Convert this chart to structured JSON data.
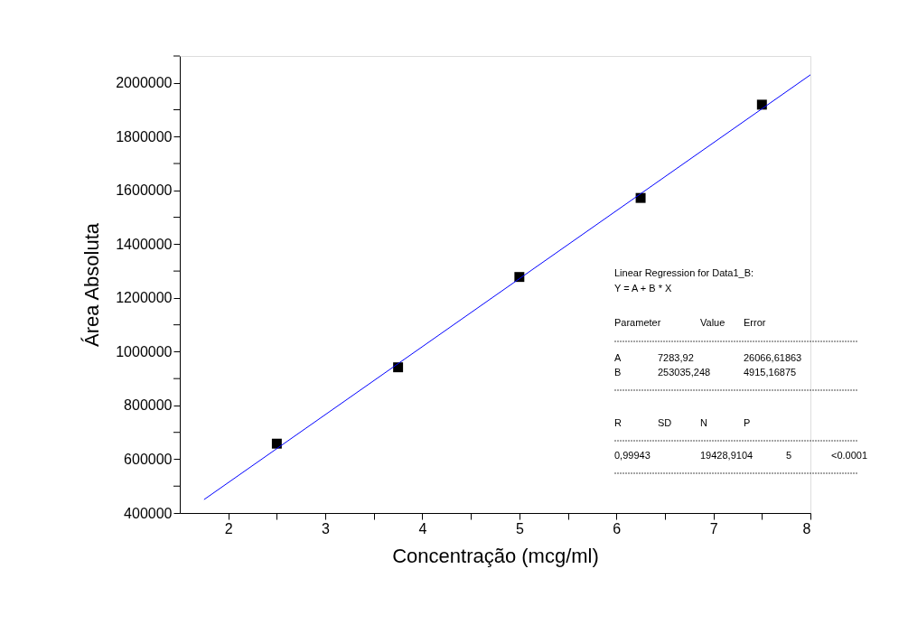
{
  "chart_data": {
    "type": "scatter",
    "xlabel": "Concentração (mcg/ml)",
    "ylabel": "Área Absoluta",
    "xlim": [
      1.5,
      8
    ],
    "ylim": [
      400000,
      2100000
    ],
    "xticks": [
      2,
      {
        "value": 2.5,
        "label": null
      },
      3,
      {
        "value": 3.5,
        "label": null
      },
      4,
      {
        "value": 4.5,
        "label": null
      },
      5,
      {
        "value": 5.5,
        "label": null
      },
      6,
      {
        "value": 6.5,
        "label": null
      },
      7,
      {
        "value": 7.5,
        "label": null
      },
      8
    ],
    "yticks": [
      400000,
      {
        "value": 500000,
        "label": null
      },
      600000,
      {
        "value": 700000,
        "label": null
      },
      800000,
      {
        "value": 900000,
        "label": null
      },
      1000000,
      {
        "value": 1100000,
        "label": null
      },
      1200000,
      {
        "value": 1300000,
        "label": null
      },
      1400000,
      {
        "value": 1500000,
        "label": null
      },
      1600000,
      {
        "value": 1700000,
        "label": null
      },
      1800000,
      {
        "value": 1900000,
        "label": null
      },
      2000000,
      {
        "value": 2100000,
        "label": null
      }
    ],
    "grid": false,
    "series": [
      {
        "marker": "square",
        "color": "#000000",
        "x": [
          2.5,
          3.75,
          5,
          6.25,
          7.5
        ],
        "values": [
          658000,
          942000,
          1278000,
          1572000,
          1919000
        ]
      },
      {
        "type": "line",
        "marker": "none",
        "line_style": "solid",
        "color": "#0000ff",
        "x": [
          1.75,
          8
        ],
        "values": [
          450000,
          2030000
        ]
      }
    ],
    "annotations": [
      "Linear Regression for Data1_B:",
      "Y = A + B * X",
      "Parameter",
      "Value",
      "Error",
      "A",
      "7283,92",
      "26066,61863",
      "B",
      "253035,248",
      "4915,16875",
      "R",
      "SD",
      "N",
      "P",
      "0,99943",
      "19428,9104",
      "5",
      "<0.0001"
    ]
  }
}
